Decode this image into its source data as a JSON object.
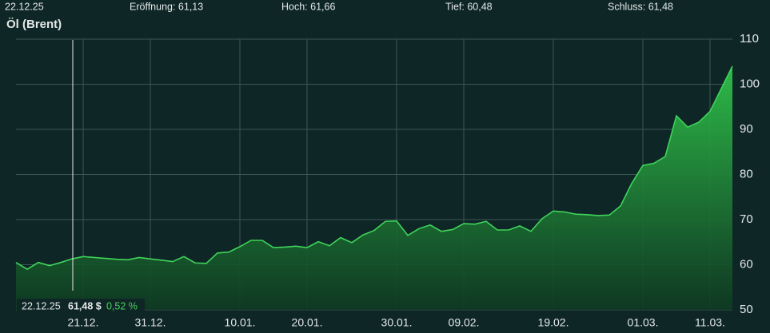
{
  "header": {
    "date": "22.12.25",
    "open": "Eröffnung: 61,13",
    "high": "Hoch: 61,66",
    "low": "Tief: 60,48",
    "close": "Schluss: 61,48"
  },
  "tooltip": {
    "date": "22.12.25",
    "price": "61,48 $",
    "change": "0,52 %"
  },
  "chart_data": {
    "type": "area",
    "title": "Öl (Brent)",
    "color": "#3fd45a",
    "categories": [
      null,
      null,
      null,
      null,
      null,
      null,
      "21.12.",
      null,
      null,
      null,
      null,
      null,
      "31.12.",
      null,
      null,
      null,
      null,
      null,
      null,
      null,
      "10.01.",
      null,
      null,
      null,
      null,
      null,
      "20.01.",
      null,
      null,
      null,
      null,
      null,
      null,
      null,
      "30.01.",
      null,
      null,
      null,
      null,
      null,
      "09.02.",
      null,
      null,
      null,
      null,
      null,
      null,
      null,
      "19.02.",
      null,
      null,
      null,
      null,
      null,
      null,
      null,
      "01.03.",
      null,
      null,
      null,
      null,
      null,
      "11.03.",
      null,
      null
    ],
    "values": [
      60.5,
      59,
      60.5,
      59.8,
      60.5,
      61.3,
      61.8,
      61.6,
      61.4,
      61.2,
      61.1,
      61.6,
      61.3,
      61,
      60.7,
      61.8,
      60.4,
      60.3,
      62.6,
      62.8,
      64,
      65.4,
      65.4,
      63.8,
      63.9,
      64.1,
      63.8,
      65.1,
      64.2,
      66,
      64.9,
      66.6,
      67.6,
      69.6,
      69.7,
      66.5,
      68,
      68.8,
      67.4,
      67.8,
      69.1,
      69,
      69.6,
      67.7,
      67.7,
      68.6,
      67.4,
      70.2,
      71.9,
      71.7,
      71.2,
      71.1,
      70.9,
      71,
      73,
      78,
      82,
      82.5,
      84,
      93,
      90.5,
      91.6,
      94,
      99,
      104
    ],
    "ylim": [
      50,
      110
    ],
    "yticks": [
      50,
      60,
      70,
      80,
      90,
      100,
      110
    ],
    "grid": true
  }
}
